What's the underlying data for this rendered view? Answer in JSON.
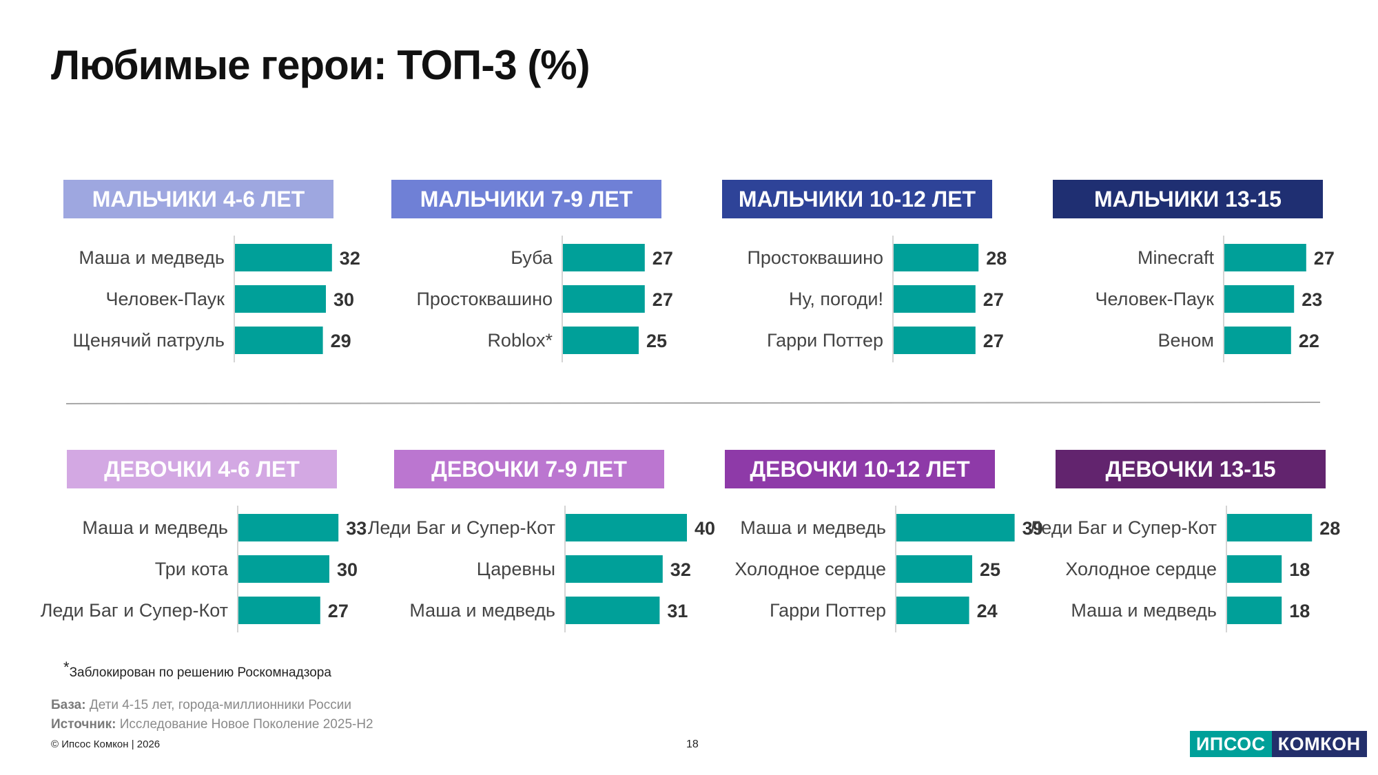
{
  "title": "Любимые герои: ТОП-3 (%)",
  "chart_data": [
    {
      "type": "bar",
      "title": "МАЛЬЧИКИ 4-6 ЛЕТ",
      "header_color": "#9ea7e0",
      "categories": [
        "Маша и медведь",
        "Человек-Паук",
        "Щенячий патруль"
      ],
      "values": [
        32,
        30,
        29
      ]
    },
    {
      "type": "bar",
      "title": "МАЛЬЧИКИ 7-9 ЛЕТ",
      "header_color": "#6f80d6",
      "categories": [
        "Буба",
        "Простоквашино",
        "Roblox*"
      ],
      "values": [
        27,
        27,
        25
      ]
    },
    {
      "type": "bar",
      "title": "МАЛЬЧИКИ 10-12 ЛЕТ",
      "header_color": "#2e4398",
      "categories": [
        "Простоквашино",
        "Ну, погоди!",
        "Гарри Поттер"
      ],
      "values": [
        28,
        27,
        27
      ]
    },
    {
      "type": "bar",
      "title": "МАЛЬЧИКИ 13-15",
      "header_color": "#1f2f72",
      "categories": [
        "Minecraft",
        "Человек-Паук",
        "Веном"
      ],
      "values": [
        27,
        23,
        22
      ]
    },
    {
      "type": "bar",
      "title": "ДЕВОЧКИ 4-6 ЛЕТ",
      "header_color": "#d3a8e3",
      "categories": [
        "Маша и медведь",
        "Три кота",
        "Леди Баг и Супер-Кот"
      ],
      "values": [
        33,
        30,
        27
      ]
    },
    {
      "type": "bar",
      "title": "ДЕВОЧКИ 7-9 ЛЕТ",
      "header_color": "#bb76d0",
      "categories": [
        "Леди Баг и Супер-Кот",
        "Царевны",
        "Маша и медведь"
      ],
      "values": [
        40,
        32,
        31
      ]
    },
    {
      "type": "bar",
      "title": "ДЕВОЧКИ 10-12 ЛЕТ",
      "header_color": "#8e3aa8",
      "categories": [
        "Маша и медведь",
        "Холодное сердце",
        "Гарри Поттер"
      ],
      "values": [
        39,
        25,
        24
      ]
    },
    {
      "type": "bar",
      "title": "ДЕВОЧКИ 13-15",
      "header_color": "#62246e",
      "categories": [
        "Леди Баг и Супер-Кот",
        "Холодное сердце",
        "Маша и медведь"
      ],
      "values": [
        28,
        18,
        18
      ]
    }
  ],
  "bar_color": "#00A099",
  "footnote": {
    "star": "*",
    "text": "Заблокирован по решению Роскомнадзора"
  },
  "base": {
    "label": "База:",
    "text": " Дети 4-15 лет, города-миллионники России"
  },
  "source": {
    "label": "Источник:",
    "text": " Исследование Новое Поколение 2025-H2"
  },
  "copyright": "© Ипсос Комкон | 2026",
  "page_number": "18",
  "logo": {
    "part1": "ИПСОС",
    "part2": "КОМКОН"
  }
}
